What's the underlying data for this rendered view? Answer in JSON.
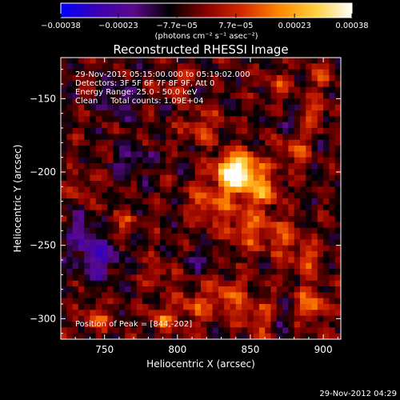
{
  "colorbar": {
    "tick_labels": [
      "−0.00038",
      "−0.00023",
      "−7.7e−05",
      "7.7e−05",
      "0.00023",
      "0.00038"
    ],
    "tick_values": [
      -0.00038,
      -0.00023,
      -7.7e-05,
      7.7e-05,
      0.00023,
      0.00038
    ],
    "range": [
      -0.00038,
      0.00038
    ],
    "units": "(photons cm⁻² s⁻¹ asec⁻²)",
    "colors": [
      "#0000ff",
      "#3b00b4",
      "#5a0a8a",
      "#000000",
      "#8a0000",
      "#d42b00",
      "#ff8800",
      "#ffd040",
      "#ffffff"
    ]
  },
  "chart_data": {
    "type": "heatmap",
    "title": "Reconstructed RHESSI Image",
    "xlabel": "Heliocentric X (arcsec)",
    "ylabel": "Heliocentric Y (arcsec)",
    "xlim": [
      720,
      912
    ],
    "ylim": [
      -314,
      -122
    ],
    "xticks": [
      750,
      800,
      850,
      900
    ],
    "yticks": [
      -150,
      -200,
      -250,
      -300
    ],
    "annotation_lines": [
      "29-Nov-2012 05:15:00.000 to 05:19:02.000",
      "Detectors: 3F 5F 6F 7F 8F 9F, Att 0",
      "Energy Range: 25.0 - 50.0 keV",
      "Clean     Total counts: 1.09E+04"
    ],
    "peak_label": "Position of Peak = [844,-202]",
    "peak": {
      "x": 844,
      "y": -202
    },
    "cell_arcsec": 4,
    "sources": [
      {
        "x": 844,
        "y": -202,
        "amp": 1.0,
        "s": 10
      },
      {
        "x": 835,
        "y": -198,
        "amp": 0.55,
        "s": 7
      },
      {
        "x": 822,
        "y": -222,
        "amp": 0.5,
        "s": 9
      },
      {
        "x": 860,
        "y": -214,
        "amp": 0.45,
        "s": 8
      },
      {
        "x": 847,
        "y": -238,
        "amp": 0.45,
        "s": 10
      },
      {
        "x": 870,
        "y": -244,
        "amp": 0.38,
        "s": 9
      },
      {
        "x": 816,
        "y": -168,
        "amp": 0.32,
        "s": 9
      },
      {
        "x": 880,
        "y": -185,
        "amp": 0.42,
        "s": 7
      },
      {
        "x": 893,
        "y": -160,
        "amp": 0.4,
        "s": 7
      },
      {
        "x": 900,
        "y": -135,
        "amp": 0.35,
        "s": 6
      },
      {
        "x": 888,
        "y": -260,
        "amp": 0.4,
        "s": 8
      },
      {
        "x": 892,
        "y": -290,
        "amp": 0.55,
        "s": 7
      },
      {
        "x": 835,
        "y": -285,
        "amp": 0.5,
        "s": 9
      },
      {
        "x": 858,
        "y": -300,
        "amp": 0.45,
        "s": 8
      },
      {
        "x": 810,
        "y": -292,
        "amp": 0.4,
        "s": 8
      },
      {
        "x": 790,
        "y": -300,
        "amp": 0.45,
        "s": 6
      },
      {
        "x": 787,
        "y": -270,
        "amp": 0.3,
        "s": 6
      },
      {
        "x": 745,
        "y": -300,
        "amp": 0.38,
        "s": 7
      },
      {
        "x": 762,
        "y": -235,
        "amp": 0.3,
        "s": 6
      },
      {
        "x": 735,
        "y": -212,
        "amp": 0.28,
        "s": 6
      },
      {
        "x": 800,
        "y": -140,
        "amp": 0.35,
        "s": 6
      },
      {
        "x": 870,
        "y": -140,
        "amp": 0.3,
        "s": 6
      },
      {
        "x": 745,
        "y": -258,
        "amp": -0.55,
        "s": 10
      },
      {
        "x": 760,
        "y": -150,
        "amp": -0.35,
        "s": 8
      },
      {
        "x": 770,
        "y": -192,
        "amp": -0.3,
        "s": 7
      },
      {
        "x": 735,
        "y": -240,
        "amp": -0.35,
        "s": 7
      },
      {
        "x": 868,
        "y": -300,
        "amp": -0.3,
        "s": 6
      },
      {
        "x": 815,
        "y": -260,
        "amp": -0.25,
        "s": 6
      },
      {
        "x": 875,
        "y": -165,
        "amp": -0.28,
        "s": 6
      }
    ]
  },
  "footer": {
    "timestamp": "29-Nov-2012 04:29"
  }
}
